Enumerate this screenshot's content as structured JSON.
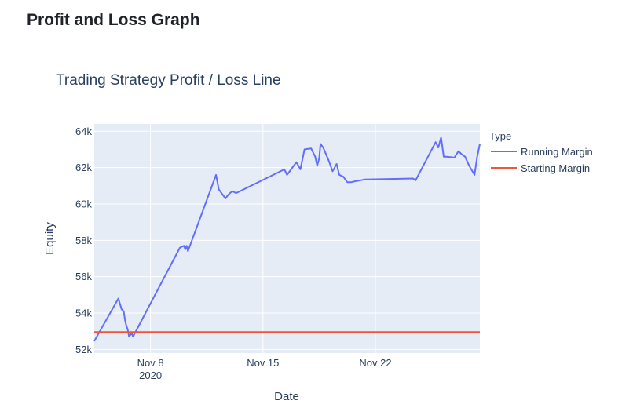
{
  "page": {
    "heading": "Profit and Loss Graph"
  },
  "chart_data": {
    "type": "line",
    "title": "Trading Strategy Profit / Loss Line",
    "xlabel": "Date",
    "ylabel": "Equity",
    "x_ticks": [
      {
        "date": "2020-11-08",
        "label": "Nov 8",
        "sublabel": "2020"
      },
      {
        "date": "2020-11-15",
        "label": "Nov 15",
        "sublabel": ""
      },
      {
        "date": "2020-11-22",
        "label": "Nov 22",
        "sublabel": ""
      }
    ],
    "xlim": [
      "2020-11-04T12:00",
      "2020-11-28T12:00"
    ],
    "ylim": [
      51800,
      64400
    ],
    "y_ticks": [
      {
        "value": 52000,
        "label": "52k"
      },
      {
        "value": 54000,
        "label": "54k"
      },
      {
        "value": 56000,
        "label": "56k"
      },
      {
        "value": 58000,
        "label": "58k"
      },
      {
        "value": 60000,
        "label": "60k"
      },
      {
        "value": 62000,
        "label": "62k"
      },
      {
        "value": 64000,
        "label": "64k"
      }
    ],
    "grid": true,
    "legend": {
      "title": "Type",
      "position": "right"
    },
    "series": [
      {
        "name": "Running Margin",
        "color": "#636efa",
        "x": [
          "2020-11-04T12:00",
          "2020-11-06T00:00",
          "2020-11-06T05:00",
          "2020-11-06T08:00",
          "2020-11-06T10:00",
          "2020-11-06T12:00",
          "2020-11-06T14:00",
          "2020-11-06T16:00",
          "2020-11-06T20:00",
          "2020-11-06T22:00",
          "2020-11-09T20:00",
          "2020-11-10T02:00",
          "2020-11-10T04:00",
          "2020-11-10T06:00",
          "2020-11-10T08:00",
          "2020-11-12T02:00",
          "2020-11-12T06:00",
          "2020-11-12T10:00",
          "2020-11-12T16:00",
          "2020-11-12T20:00",
          "2020-11-13T02:00",
          "2020-11-13T08:00",
          "2020-11-16T08:00",
          "2020-11-16T12:00",
          "2020-11-17T02:00",
          "2020-11-17T08:00",
          "2020-11-17T14:00",
          "2020-11-18T00:00",
          "2020-11-18T06:00",
          "2020-11-18T09:00",
          "2020-11-18T12:00",
          "2020-11-18T14:00",
          "2020-11-18T18:00",
          "2020-11-19T02:00",
          "2020-11-19T08:00",
          "2020-11-19T14:00",
          "2020-11-19T18:00",
          "2020-11-20T00:00",
          "2020-11-20T06:00",
          "2020-11-20T12:00",
          "2020-11-20T18:00",
          "2020-11-21T02:00",
          "2020-11-21T08:00",
          "2020-11-24T08:00",
          "2020-11-24T12:00",
          "2020-11-25T18:00",
          "2020-11-25T22:00",
          "2020-11-26T02:00",
          "2020-11-26T06:00",
          "2020-11-26T10:00",
          "2020-11-26T22:00",
          "2020-11-27T04:00",
          "2020-11-27T10:00",
          "2020-11-27T14:00",
          "2020-11-27T20:00",
          "2020-11-28T04:00",
          "2020-11-28T08:00",
          "2020-11-28T12:00"
        ],
        "values": [
          52450,
          54800,
          54200,
          54100,
          53600,
          53300,
          53100,
          52700,
          52900,
          52700,
          57600,
          57700,
          57500,
          57700,
          57400,
          61600,
          60800,
          60600,
          60300,
          60500,
          60700,
          60600,
          61900,
          61600,
          62300,
          61900,
          63000,
          63050,
          62600,
          62100,
          62500,
          63300,
          63100,
          62400,
          61800,
          62200,
          61600,
          61500,
          61200,
          61200,
          61250,
          61300,
          61350,
          61400,
          61300,
          63400,
          63100,
          63650,
          62600,
          62600,
          62550,
          62900,
          62700,
          62600,
          62100,
          61600,
          62600,
          63300
        ]
      },
      {
        "name": "Starting Margin",
        "color": "#ef553b",
        "x": [
          "2020-11-04T12:00",
          "2020-11-28T12:00"
        ],
        "values": [
          52950,
          52950
        ]
      }
    ]
  }
}
